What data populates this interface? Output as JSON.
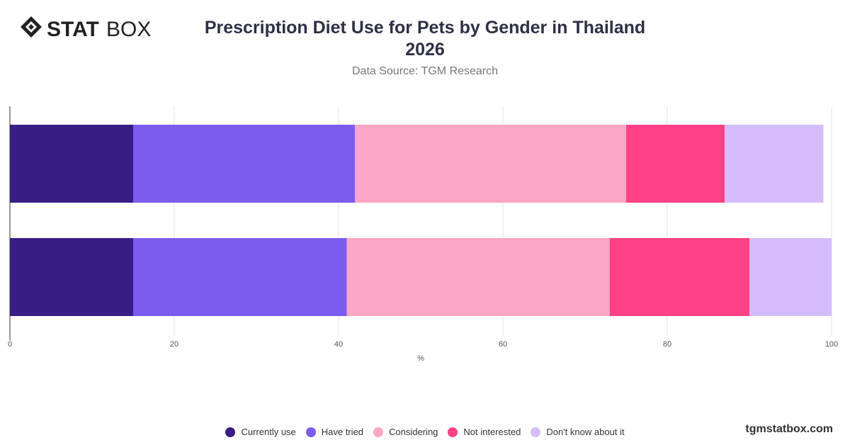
{
  "brand": {
    "logo_text_bold": "STAT",
    "logo_text_light": "BOX",
    "site": "tgmstatbox.com"
  },
  "chart_data": {
    "type": "bar",
    "orientation": "horizontal",
    "stacked": true,
    "title_line1": "Prescription Diet Use for Pets by Gender in Thailand",
    "title_line2": "2026",
    "subtitle": "Data Source: TGM Research",
    "xlabel": "%",
    "xlim": [
      0,
      100
    ],
    "xticks": [
      0,
      20,
      40,
      60,
      80,
      100
    ],
    "grid": true,
    "legend_position": "bottom",
    "categories": [
      "",
      ""
    ],
    "series": [
      {
        "name": "Currently use",
        "color": "#3a1c85",
        "values": [
          15,
          15
        ]
      },
      {
        "name": "Have tried",
        "color": "#7b5cef",
        "values": [
          27,
          26
        ]
      },
      {
        "name": "Considering",
        "color": "#fca5c4",
        "values": [
          33,
          32
        ]
      },
      {
        "name": "Not interested",
        "color": "#ff4185",
        "values": [
          12,
          17
        ]
      },
      {
        "name": "Don't know about it",
        "color": "#d5bdfb",
        "values": [
          12,
          10
        ]
      }
    ]
  }
}
